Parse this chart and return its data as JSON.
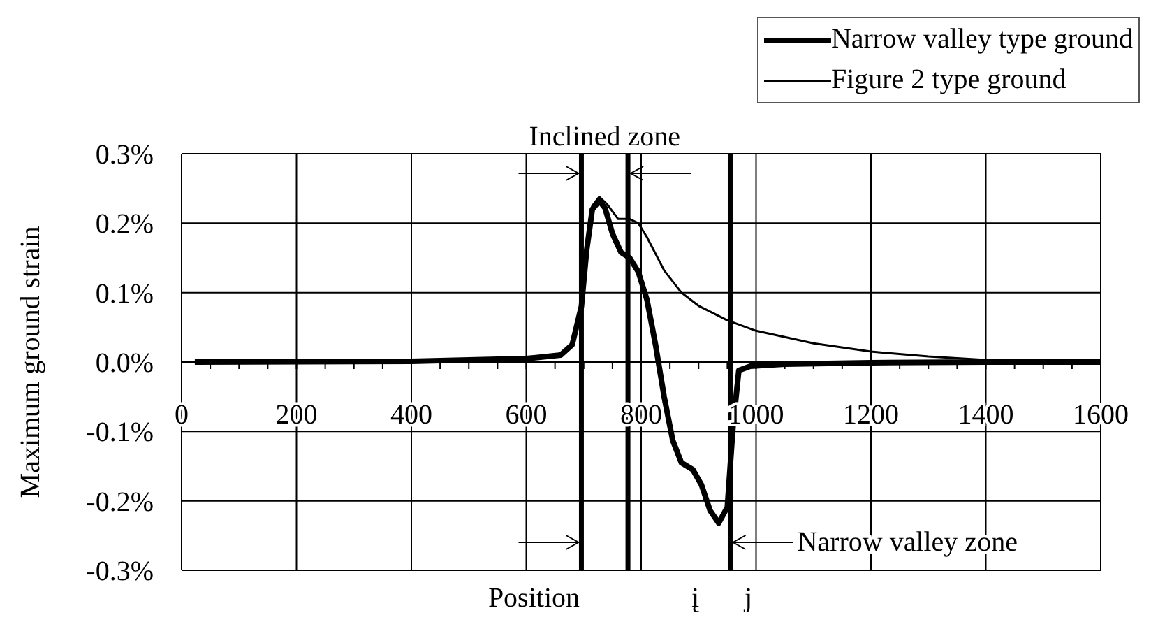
{
  "chart_data": {
    "type": "line",
    "xlabel": "Position",
    "ylabel": "Maximum ground strain",
    "series": [
      {
        "name": "Narrow valley type ground",
        "color": "#000000",
        "x": [
          23,
          400,
          600,
          660,
          680,
          696,
          705,
          715,
          727,
          737,
          750,
          765,
          780,
          795,
          810,
          825,
          840,
          855,
          870,
          890,
          905,
          920,
          935,
          950,
          960,
          970,
          990,
          1050,
          1200,
          1400,
          1600
        ],
        "values": [
          0,
          0.001,
          0.005,
          0.01,
          0.025,
          0.08,
          0.16,
          0.22,
          0.232,
          0.222,
          0.185,
          0.158,
          0.15,
          0.13,
          0.09,
          0.025,
          -0.05,
          -0.113,
          -0.145,
          -0.155,
          -0.177,
          -0.214,
          -0.232,
          -0.209,
          -0.092,
          -0.012,
          -0.006,
          -0.003,
          -0.001,
          0,
          0
        ]
      },
      {
        "name": "Figure 2 type ground",
        "color": "#000000",
        "x": [
          23,
          400,
          600,
          660,
          680,
          696,
          705,
          715,
          727,
          740,
          760,
          780,
          795,
          810,
          840,
          870,
          900,
          950,
          1000,
          1100,
          1200,
          1300,
          1400,
          1500,
          1600
        ],
        "values": [
          0,
          0.001,
          0.005,
          0.01,
          0.025,
          0.08,
          0.17,
          0.225,
          0.238,
          0.228,
          0.206,
          0.206,
          0.2,
          0.18,
          0.132,
          0.1,
          0.081,
          0.06,
          0.045,
          0.027,
          0.015,
          0.008,
          0.003,
          0.001,
          0
        ]
      }
    ],
    "xlim": [
      0,
      1600
    ],
    "xticks": [
      0,
      200,
      400,
      600,
      800,
      1000,
      1200,
      1400,
      1600
    ],
    "ylim": [
      -0.3,
      0.3
    ],
    "yticks": [
      {
        "value": -0.3,
        "label": "-0.3%"
      },
      {
        "value": -0.2,
        "label": "-0.2%"
      },
      {
        "value": -0.1,
        "label": "-0.1%"
      },
      {
        "value": 0,
        "label": "0.0%"
      },
      {
        "value": 0.1,
        "label": "0.1%"
      },
      {
        "value": 0.2,
        "label": "0.2%"
      },
      {
        "value": 0.3,
        "label": "0.3%"
      }
    ],
    "ref_lines": [
      {
        "axis": "x",
        "value": 696
      },
      {
        "axis": "x",
        "value": 777
      },
      {
        "axis": "x",
        "value": 955
      }
    ],
    "annotations": [
      "Inclined zone",
      "Narrow valley zone",
      "į",
      "j"
    ],
    "grid": true,
    "legend": "top right",
    "marker": "none",
    "line_style": "solid"
  }
}
